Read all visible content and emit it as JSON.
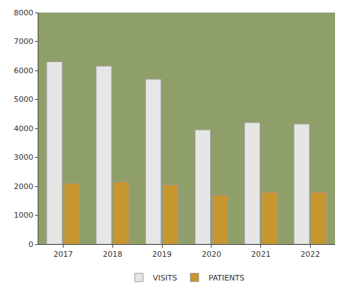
{
  "chart_data": {
    "type": "bar",
    "categories": [
      "2017",
      "2018",
      "2019",
      "2020",
      "2021",
      "2022"
    ],
    "series": [
      {
        "name": "VISITS",
        "color": "#e6e6e6",
        "values": [
          6300,
          6150,
          5700,
          3950,
          4200,
          4150
        ]
      },
      {
        "name": "PATIENTS",
        "color": "#c8962e",
        "values": [
          2100,
          2150,
          2050,
          1700,
          1800,
          1800
        ]
      }
    ],
    "ylim": [
      0,
      8000
    ],
    "yticks": [
      0,
      1000,
      2000,
      3000,
      4000,
      5000,
      6000,
      7000,
      8000
    ],
    "grid": false,
    "legend": "bottom"
  }
}
